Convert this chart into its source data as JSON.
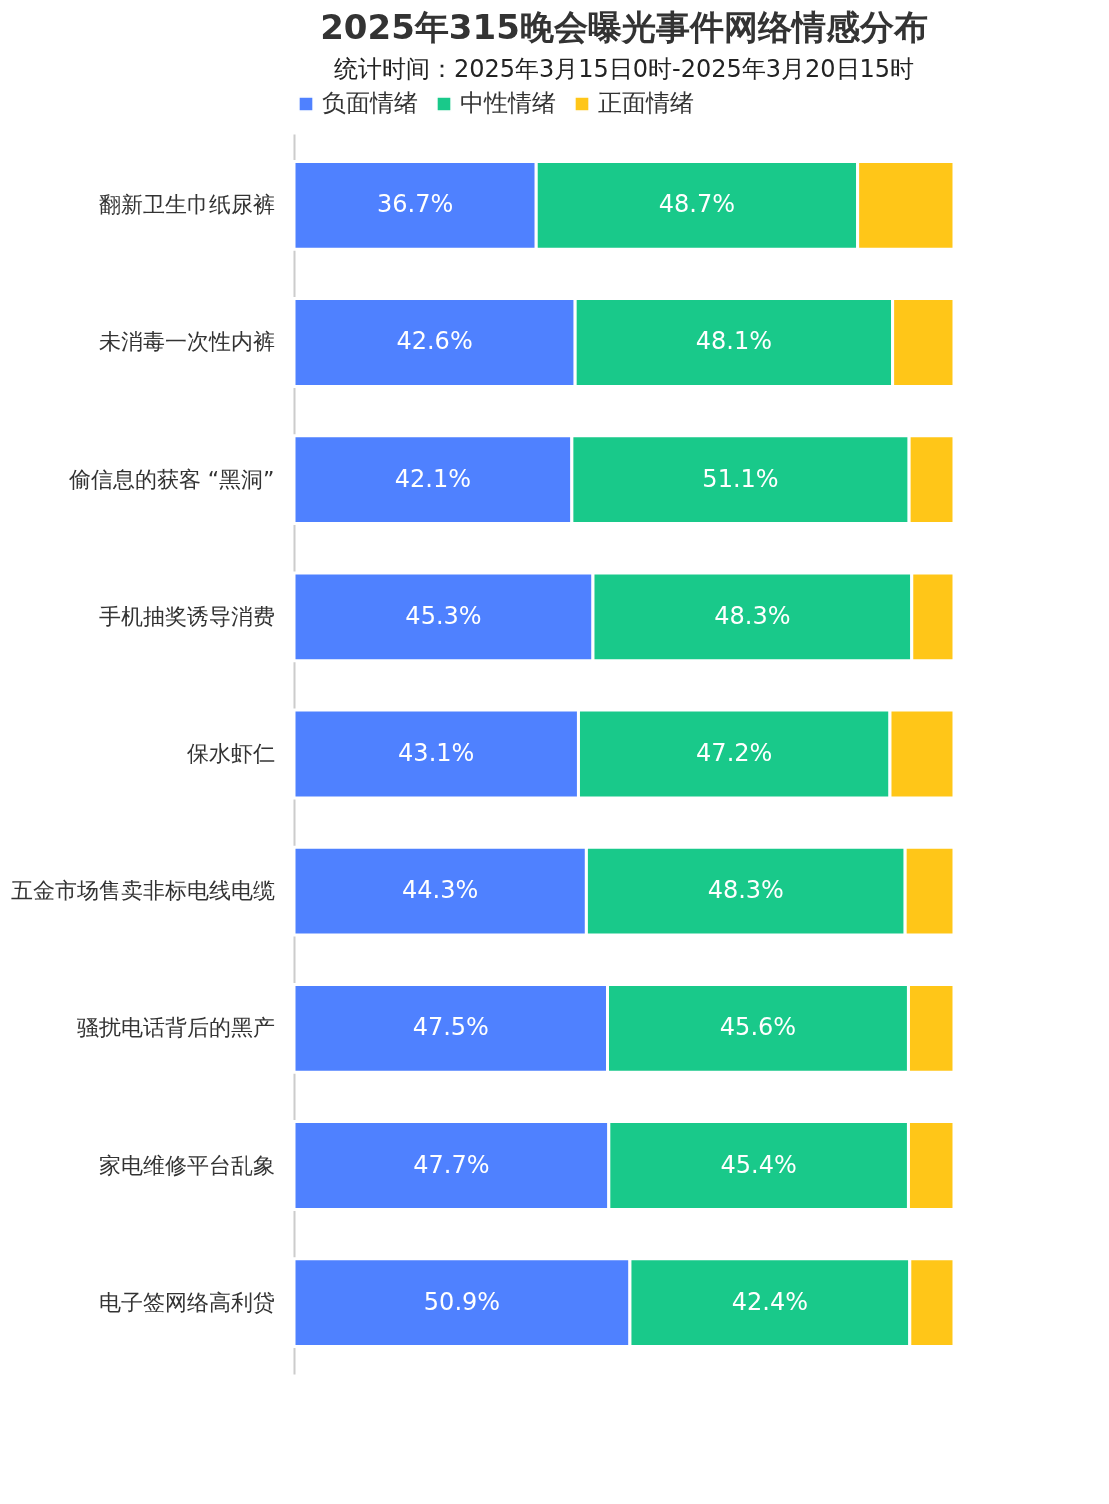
{
  "chart_data": {
    "type": "bar",
    "orientation": "horizontal",
    "stacked": true,
    "title": "2025年315晚会曝光事件网络情感分布",
    "subtitle": "统计时间：2025年3月15日0时-2025年3月20日15时",
    "categories": [
      "翻新卫生巾纸尿裤",
      "未消毒一次性内裤",
      "偷信息的获客 “黑洞”",
      "手机抽奖诱导消费",
      "保水虾仁",
      "五金市场售卖非标电线电缆",
      "骚扰电话背后的黑产",
      "家电维修平台乱象",
      "电子签网络高利贷"
    ],
    "series": [
      {
        "name": "负面情绪",
        "color": "#4f81ff",
        "values": [
          36.7,
          42.6,
          42.1,
          45.3,
          43.1,
          44.3,
          47.5,
          47.7,
          50.9
        ],
        "value_labels": [
          "36.7%",
          "42.6%",
          "42.1%",
          "45.3%",
          "43.1%",
          "44.3%",
          "47.5%",
          "47.7%",
          "50.9%"
        ]
      },
      {
        "name": "中性情绪",
        "color": "#19c98a",
        "values": [
          48.7,
          48.1,
          51.1,
          48.3,
          47.2,
          48.3,
          45.6,
          45.4,
          42.4
        ],
        "value_labels": [
          "48.7%",
          "48.1%",
          "51.1%",
          "48.3%",
          "47.2%",
          "48.3%",
          "45.6%",
          "45.4%",
          "42.4%"
        ]
      },
      {
        "name": "正面情绪",
        "color": "#ffc618",
        "values": [
          14.6,
          9.3,
          6.8,
          6.4,
          9.7,
          7.4,
          6.9,
          6.9,
          6.7
        ]
      }
    ],
    "xlim": [
      0,
      100
    ],
    "tick_labels": "y",
    "legend": "top",
    "marker": "square"
  }
}
